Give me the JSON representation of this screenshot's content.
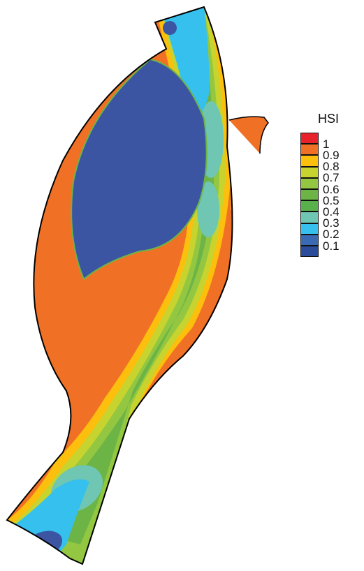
{
  "legend": {
    "title": "HSI",
    "swatches": [
      {
        "color": "#e8222a"
      },
      {
        "color": "#f07125"
      },
      {
        "color": "#fcbf0d"
      },
      {
        "color": "#c7d42f"
      },
      {
        "color": "#93c741"
      },
      {
        "color": "#6db446"
      },
      {
        "color": "#58b14a"
      },
      {
        "color": "#6ec6b3"
      },
      {
        "color": "#35c0ee"
      },
      {
        "color": "#3a6ab3"
      },
      {
        "color": "#2b4c9a"
      }
    ],
    "labels": [
      "1",
      "0.9",
      "0.8",
      "0.7",
      "0.6",
      "0.5",
      "0.4",
      "0.3",
      "0.2",
      "0.1"
    ]
  },
  "map_colors": {
    "outline": "#000000",
    "orange": "#f07125",
    "yellow": "#fcbf0d",
    "lime": "#c7d42f",
    "light_green": "#93c741",
    "green": "#6db446",
    "teal": "#6ec6b3",
    "cyan": "#35c0ee",
    "blue": "#3b55a3"
  }
}
